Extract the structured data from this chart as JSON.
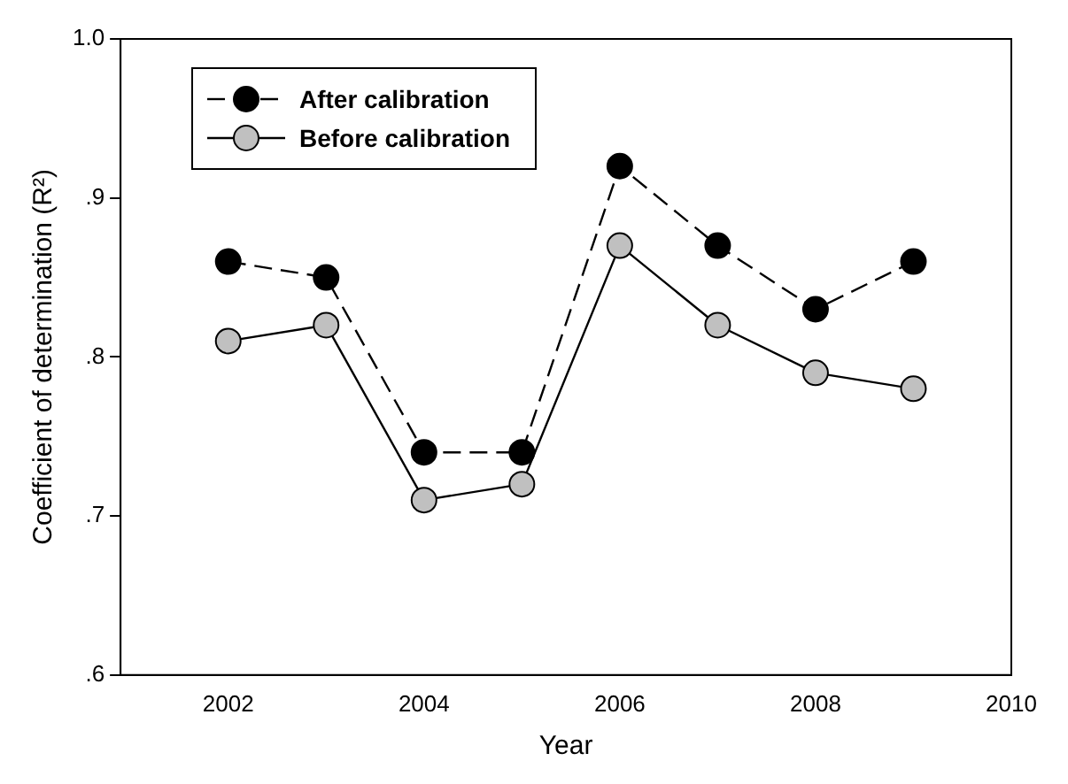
{
  "chart_data": {
    "type": "line",
    "xlabel": "Year",
    "ylabel": "Coefficient of determination (R²)",
    "x": [
      2002,
      2003,
      2004,
      2005,
      2006,
      2007,
      2008,
      2009
    ],
    "series": [
      {
        "name": "After calibration",
        "color": "#000000",
        "line_style": "dashed",
        "values": [
          0.86,
          0.85,
          0.74,
          0.74,
          0.92,
          0.87,
          0.83,
          0.86
        ]
      },
      {
        "name": "Before calibration",
        "color": "#c0c0c0",
        "line_style": "solid",
        "values": [
          0.81,
          0.82,
          0.71,
          0.72,
          0.87,
          0.82,
          0.79,
          0.78
        ]
      }
    ],
    "xlim": [
      2000.9,
      2010
    ],
    "xticks": [
      2002,
      2004,
      2006,
      2008,
      2010
    ],
    "ylim": [
      0.6,
      1.0
    ],
    "yticks": [
      {
        "value": 0.6,
        "label": ".6"
      },
      {
        "value": 0.7,
        "label": ".7"
      },
      {
        "value": 0.8,
        "label": ".8"
      },
      {
        "value": 0.9,
        "label": ".9"
      },
      {
        "value": 1.0,
        "label": "1.0"
      }
    ],
    "grid": false,
    "legend": "top left",
    "marker": "circle"
  }
}
